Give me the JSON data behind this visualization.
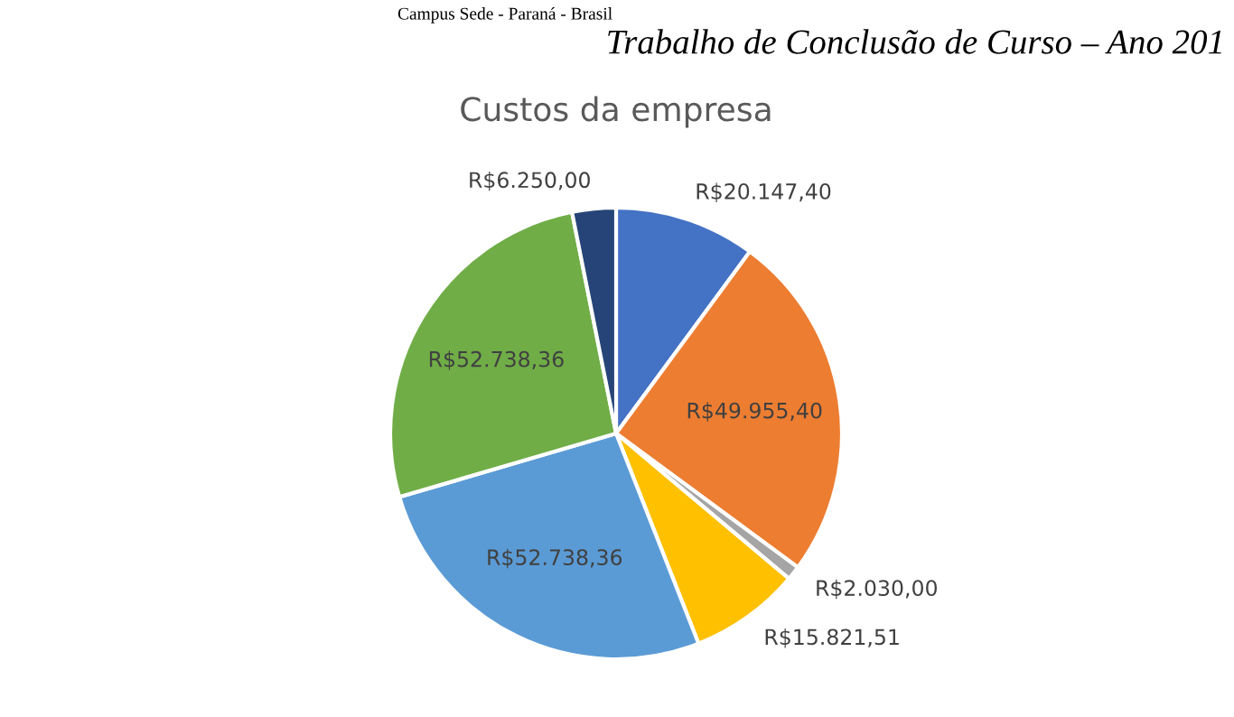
{
  "chart_data": {
    "type": "pie",
    "title": "Custos da empresa",
    "categories": [
      null,
      null,
      null,
      null,
      null,
      null,
      null
    ],
    "values": [
      20147.4,
      49955.4,
      2030.0,
      15821.51,
      52738.36,
      52738.36,
      6250.0
    ],
    "value_labels": [
      "R$20.147,40",
      "R$49.955,40",
      "R$2.030,00",
      "R$15.821,51",
      "R$52.738,36",
      "R$52.738,36",
      "R$6.250,00"
    ],
    "colors": [
      "#4472c4",
      "#ed7d31",
      "#a5a5a5",
      "#ffc000",
      "#5b9bd5",
      "#70ad47",
      "#264478"
    ],
    "annotations": [
      "Campus Sede - Paraná - Brasil",
      "Trabalho de Conclusão de Curso – Ano 201"
    ]
  }
}
